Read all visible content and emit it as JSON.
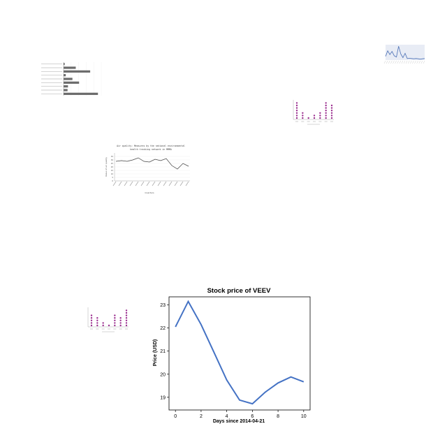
{
  "charts": {
    "hbar": {
      "type": "bar",
      "orientation": "horizontal",
      "title": "",
      "categories": [
        "",
        "",
        "",
        "",
        "",
        "",
        "",
        "",
        ""
      ],
      "values": [
        5,
        55,
        120,
        10,
        40,
        70,
        20,
        18,
        155
      ],
      "xlim": [
        0,
        170
      ],
      "color": "#6b6b6b"
    },
    "mini_line": {
      "type": "line",
      "title": "",
      "values": [
        12,
        30,
        18,
        28,
        14,
        10,
        45,
        20,
        8,
        22,
        5,
        6,
        5,
        4,
        5,
        4,
        3,
        4,
        5
      ],
      "ylim": [
        0,
        50
      ],
      "color": "#4a6fb5",
      "background": "#e8ecf5"
    },
    "dots_a": {
      "type": "scatter",
      "style": "dot-column",
      "title": "",
      "counts": [
        7,
        3,
        1,
        2,
        3,
        7,
        6
      ],
      "color": "#9b2f8f"
    },
    "air": {
      "type": "line",
      "title_lines": [
        "Air quality: Measures by the national environmental",
        "health tracking network in MMMA"
      ],
      "xlabel": "Quarters",
      "ylabel": "Value of air quality",
      "values": [
        28,
        29,
        28,
        30,
        33,
        28,
        27,
        31,
        29,
        32,
        22,
        17,
        25,
        21
      ],
      "ylim": [
        0,
        40
      ],
      "yticks": [
        0,
        5,
        10,
        15,
        20,
        25,
        30,
        35
      ],
      "color": "#444444"
    },
    "dots_b": {
      "type": "scatter",
      "style": "dot-column",
      "title": "",
      "counts": [
        5,
        4,
        2,
        1,
        5,
        4,
        7
      ],
      "color": "#9b2f8f"
    },
    "main": {
      "type": "line",
      "title": "Stock price of VEEV",
      "xlabel": "Days since 2014-04-21",
      "ylabel": "Price (USD)",
      "x": [
        0,
        1,
        2,
        3,
        4,
        5,
        6,
        7,
        8,
        9,
        10
      ],
      "y": [
        22.05,
        23.15,
        22.15,
        20.95,
        19.75,
        18.88,
        18.72,
        19.22,
        19.62,
        19.88,
        19.67
      ],
      "xlim": [
        -0.5,
        10.5
      ],
      "ylim": [
        18.45,
        23.35
      ],
      "xticks": [
        0,
        2,
        4,
        6,
        8,
        10
      ],
      "yticks": [
        19,
        20,
        21,
        22,
        23
      ],
      "color": "#4472c4",
      "grid": false
    }
  }
}
